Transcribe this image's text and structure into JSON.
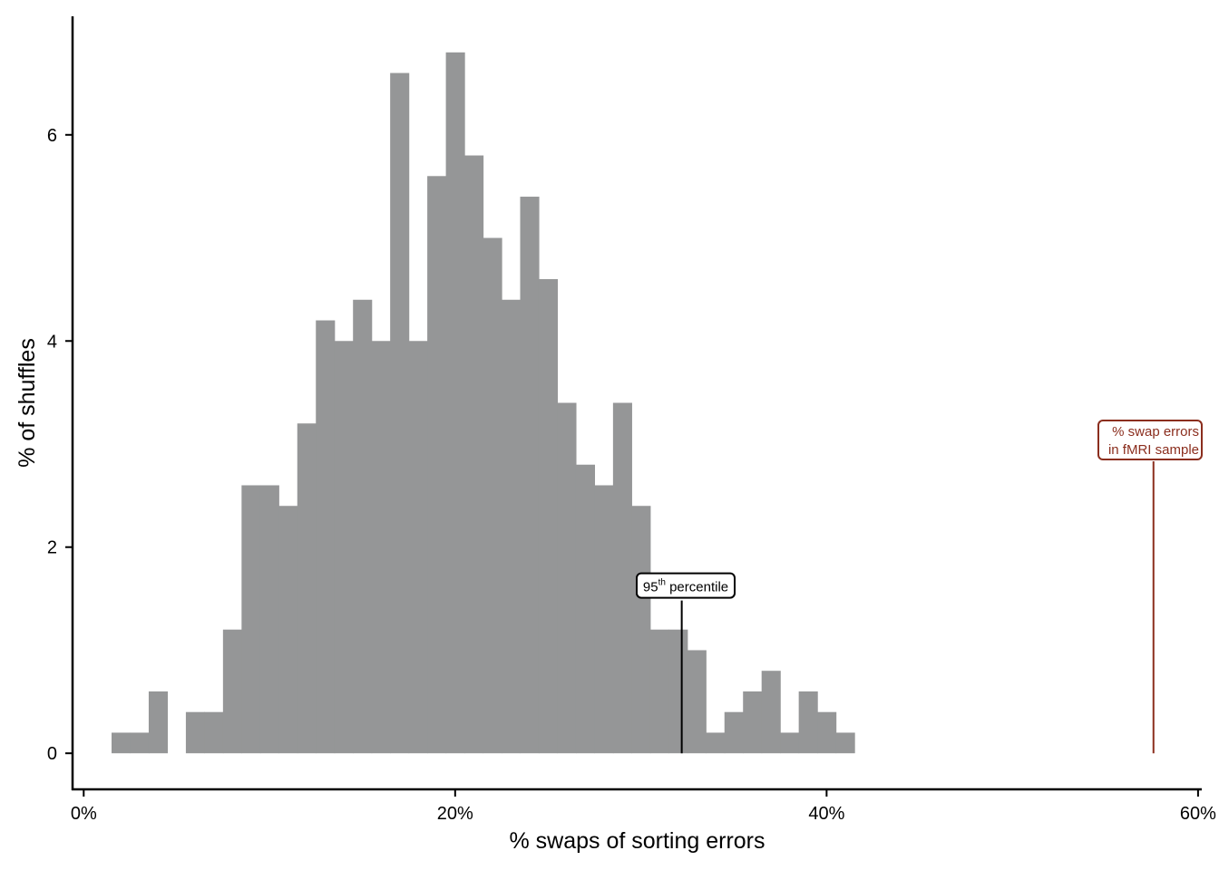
{
  "chart_data": {
    "type": "bar",
    "xlabel": "% swaps of sorting errors",
    "ylabel": "% of shuffles",
    "xlim": [
      -0.6,
      60.2
    ],
    "ylim": [
      -0.35,
      7.15
    ],
    "bin_width": 1,
    "x": [
      2,
      3,
      4,
      5,
      6,
      7,
      8,
      9,
      10,
      11,
      12,
      13,
      14,
      15,
      16,
      17,
      18,
      19,
      20,
      21,
      22,
      23,
      24,
      25,
      26,
      27,
      28,
      29,
      30,
      31,
      32,
      33,
      34,
      35,
      36,
      37,
      38,
      39,
      40,
      41
    ],
    "values": [
      0.2,
      0.2,
      0.6,
      0,
      0.4,
      0.4,
      1.2,
      2.6,
      2.6,
      2.4,
      3.2,
      4.2,
      4.0,
      4.4,
      4.0,
      6.6,
      4.0,
      5.6,
      6.8,
      5.8,
      5.0,
      4.4,
      5.4,
      4.6,
      3.4,
      2.8,
      2.6,
      3.4,
      2.4,
      1.2,
      1.2,
      1.0,
      0.2,
      0.4,
      0.6,
      0.8,
      0.2,
      0.6,
      0.4,
      0.2
    ],
    "bar_color": "#959697",
    "xticks": [
      0,
      20,
      40,
      60
    ],
    "xtick_labels": [
      "0%",
      "20%",
      "40%",
      "60%"
    ],
    "yticks": [
      0,
      2,
      4,
      6
    ],
    "ytick_labels": [
      "0",
      "2",
      "4",
      "6"
    ],
    "annotations": [
      {
        "id": "p95",
        "x": 32.2,
        "y_top": 1.5,
        "text": "95",
        "sup": "th",
        "text_after": " percentile",
        "color": "#000000"
      },
      {
        "id": "observed",
        "x": 57.6,
        "y_top": 2.85,
        "lines": [
          "% swap errors",
          "in fMRI sample"
        ],
        "color": "#8b2e1e"
      }
    ]
  }
}
